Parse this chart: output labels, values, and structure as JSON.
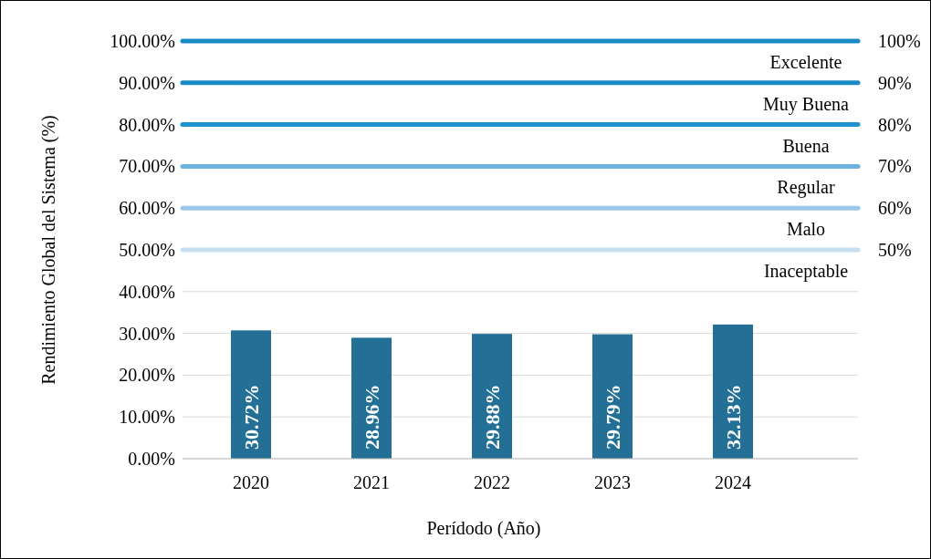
{
  "chart_data": {
    "type": "bar",
    "xlabel": "Perídodo (Año)",
    "ylabel": "Rendimiento Global del Sistema (%)",
    "categories": [
      "2020",
      "2021",
      "2022",
      "2023",
      "2024"
    ],
    "values": [
      30.72,
      28.96,
      29.88,
      29.79,
      32.13
    ],
    "color": "#236f96",
    "value_labels": [
      "30.72%",
      "28.96%",
      "29.88%",
      "29.79%",
      "32.13%"
    ],
    "ylim": [
      0,
      100
    ],
    "yticks": [
      {
        "value": 0,
        "label": "0.00%"
      },
      {
        "value": 10,
        "label": "10.00%"
      },
      {
        "value": 20,
        "label": "20.00%"
      },
      {
        "value": 30,
        "label": "30.00%"
      },
      {
        "value": 40,
        "label": "40.00%"
      },
      {
        "value": 50,
        "label": "50.00%"
      },
      {
        "value": 60,
        "label": "60.00%"
      },
      {
        "value": 70,
        "label": "70.00%"
      },
      {
        "value": 80,
        "label": "80.00%"
      },
      {
        "value": 90,
        "label": "90.00%"
      },
      {
        "value": 100,
        "label": "100.00%"
      }
    ],
    "y2lim": [
      0,
      100
    ],
    "y2ticks": [
      {
        "value": 50,
        "label": "50%"
      },
      {
        "value": 60,
        "label": "60%"
      },
      {
        "value": 70,
        "label": "70%"
      },
      {
        "value": 80,
        "label": "80%"
      },
      {
        "value": 90,
        "label": "90%"
      },
      {
        "value": 100,
        "label": "100%"
      }
    ],
    "ref_lines": [
      {
        "axis": "y2",
        "value": 100,
        "color": "#1a8ac4"
      },
      {
        "axis": "y2",
        "value": 90,
        "color": "#1a8ac4"
      },
      {
        "axis": "y2",
        "value": 80,
        "color": "#1e93cf"
      },
      {
        "axis": "y2",
        "value": 70,
        "color": "#6cb2e0"
      },
      {
        "axis": "y2",
        "value": 60,
        "color": "#9cc7e8"
      },
      {
        "axis": "y2",
        "value": 50,
        "color": "#c6dff1"
      }
    ],
    "annotations": [
      "Excelente",
      "Muy Buena",
      "Buena",
      "Regular",
      "Malo",
      "Inaceptable"
    ],
    "grid": "y"
  }
}
